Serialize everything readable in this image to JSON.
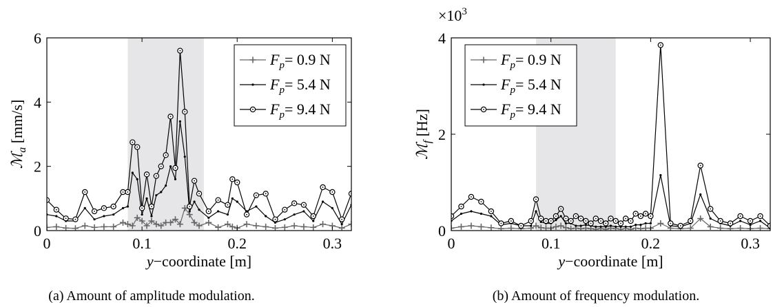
{
  "chart_data": [
    {
      "type": "line",
      "caption": "(a) Amount of amplitude modulation.",
      "xlabel": {
        "var": "y",
        "rest": "−coordinate [m]"
      },
      "ylabel": {
        "sym": "ℳ",
        "sub": "a",
        "unit": "[mm/s]"
      },
      "xlim": [
        0,
        0.32
      ],
      "ylim": [
        0,
        6
      ],
      "xticks": [
        "0",
        "0.1",
        "0.2",
        "0.3"
      ],
      "xtick_values": [
        0,
        0.1,
        0.2,
        0.3
      ],
      "yticks": [
        "0",
        "2",
        "4",
        "6"
      ],
      "ytick_values": [
        0,
        2,
        4,
        6
      ],
      "shaded_region": [
        0.085,
        0.165
      ],
      "legend_position": "top-right",
      "series": [
        {
          "name": "F_p= 0.9 N",
          "legend": {
            "var": "F",
            "sub": "p",
            "rest": "= 0.9 N"
          },
          "marker": "plus",
          "color": "#666666",
          "x": [
            0,
            0.01,
            0.02,
            0.03,
            0.04,
            0.05,
            0.06,
            0.07,
            0.08,
            0.085,
            0.09,
            0.095,
            0.1,
            0.105,
            0.11,
            0.115,
            0.12,
            0.125,
            0.13,
            0.135,
            0.14,
            0.145,
            0.15,
            0.155,
            0.16,
            0.17,
            0.18,
            0.19,
            0.195,
            0.2,
            0.21,
            0.22,
            0.23,
            0.24,
            0.25,
            0.26,
            0.27,
            0.28,
            0.29,
            0.3,
            0.31,
            0.32
          ],
          "y": [
            0.1,
            0.12,
            0.08,
            0.07,
            0.15,
            0.1,
            0.12,
            0.12,
            0.25,
            0.2,
            0.15,
            0.4,
            0.3,
            0.15,
            0.3,
            0.2,
            0.15,
            0.25,
            0.25,
            0.35,
            0.2,
            0.7,
            0.5,
            0.25,
            0.15,
            0.25,
            0.1,
            0.2,
            0.12,
            0.08,
            0.2,
            0.15,
            0.12,
            0.08,
            0.1,
            0.15,
            0.12,
            0.1,
            0.2,
            0.15,
            0.08,
            0.2
          ]
        },
        {
          "name": "F_p= 5.4 N",
          "legend": {
            "var": "F",
            "sub": "p",
            "rest": "= 5.4 N"
          },
          "marker": "dot",
          "color": "#000000",
          "x": [
            0,
            0.01,
            0.02,
            0.03,
            0.04,
            0.05,
            0.06,
            0.07,
            0.08,
            0.085,
            0.09,
            0.095,
            0.1,
            0.105,
            0.11,
            0.115,
            0.12,
            0.125,
            0.13,
            0.135,
            0.14,
            0.145,
            0.15,
            0.155,
            0.16,
            0.17,
            0.18,
            0.19,
            0.195,
            0.2,
            0.21,
            0.22,
            0.23,
            0.24,
            0.25,
            0.26,
            0.27,
            0.28,
            0.29,
            0.3,
            0.31,
            0.32
          ],
          "y": [
            0.5,
            0.45,
            0.3,
            0.3,
            0.7,
            0.35,
            0.45,
            0.5,
            0.7,
            0.75,
            1.8,
            1.6,
            0.5,
            1.0,
            0.45,
            1.1,
            1.2,
            1.4,
            2.0,
            1.6,
            3.4,
            2.3,
            0.6,
            0.9,
            0.65,
            0.4,
            0.6,
            0.5,
            1.0,
            0.9,
            0.6,
            0.75,
            0.45,
            0.25,
            0.35,
            0.5,
            0.6,
            0.3,
            0.9,
            0.7,
            0.2,
            0.8
          ]
        },
        {
          "name": "F_p= 9.4 N",
          "legend": {
            "var": "F",
            "sub": "p",
            "rest": "= 9.4 N"
          },
          "marker": "circle",
          "color": "#000000",
          "x": [
            0,
            0.01,
            0.02,
            0.03,
            0.04,
            0.05,
            0.06,
            0.07,
            0.08,
            0.085,
            0.09,
            0.095,
            0.1,
            0.105,
            0.11,
            0.115,
            0.12,
            0.125,
            0.13,
            0.135,
            0.14,
            0.145,
            0.15,
            0.155,
            0.16,
            0.17,
            0.18,
            0.19,
            0.195,
            0.2,
            0.21,
            0.22,
            0.23,
            0.24,
            0.25,
            0.26,
            0.27,
            0.28,
            0.29,
            0.3,
            0.31,
            0.32
          ],
          "y": [
            0.95,
            0.65,
            0.38,
            0.35,
            1.2,
            0.6,
            0.7,
            0.75,
            1.2,
            1.2,
            2.75,
            2.6,
            0.7,
            1.75,
            0.75,
            1.7,
            2.0,
            2.35,
            3.55,
            1.95,
            5.6,
            3.7,
            0.75,
            1.55,
            1.15,
            0.6,
            0.95,
            0.8,
            1.6,
            1.5,
            0.5,
            1.1,
            1.15,
            0.35,
            0.65,
            0.85,
            0.8,
            0.45,
            1.35,
            1.2,
            0.35,
            1.15
          ]
        }
      ]
    },
    {
      "type": "line",
      "caption": "(b) Amount of frequency modulation.",
      "xlabel": {
        "var": "y",
        "rest": "−coordinate [m]"
      },
      "ylabel": {
        "sym": "ℳ",
        "sub": "f",
        "unit": "[Hz]"
      },
      "multiplier": {
        "base": "×10",
        "exp": "3"
      },
      "xlim": [
        0,
        0.32
      ],
      "ylim": [
        0,
        4
      ],
      "xticks": [
        "0",
        "0.1",
        "0.2",
        "0.3"
      ],
      "xtick_values": [
        0,
        0.1,
        0.2,
        0.3
      ],
      "yticks": [
        "0",
        "2",
        "4"
      ],
      "ytick_values": [
        0,
        2,
        4
      ],
      "shaded_region": [
        0.085,
        0.165
      ],
      "legend_position": "top-left",
      "series": [
        {
          "name": "F_p= 0.9 N",
          "legend": {
            "var": "F",
            "sub": "p",
            "rest": "= 0.9 N"
          },
          "marker": "plus",
          "color": "#666666",
          "x": [
            0,
            0.01,
            0.02,
            0.03,
            0.04,
            0.05,
            0.06,
            0.07,
            0.08,
            0.085,
            0.09,
            0.095,
            0.1,
            0.105,
            0.11,
            0.115,
            0.12,
            0.125,
            0.13,
            0.135,
            0.14,
            0.145,
            0.15,
            0.155,
            0.16,
            0.165,
            0.17,
            0.175,
            0.18,
            0.185,
            0.19,
            0.195,
            0.2,
            0.21,
            0.22,
            0.23,
            0.24,
            0.25,
            0.26,
            0.27,
            0.28,
            0.29,
            0.3,
            0.31,
            0.32
          ],
          "y": [
            0.05,
            0.08,
            0.1,
            0.08,
            0.06,
            0.04,
            0.05,
            0.04,
            0.05,
            0.1,
            0.06,
            0.05,
            0.05,
            0.08,
            0.1,
            0.06,
            0.04,
            0.05,
            0.04,
            0.05,
            0.04,
            0.03,
            0.04,
            0.03,
            0.05,
            0.04,
            0.03,
            0.04,
            0.03,
            0.05,
            0.04,
            0.05,
            0.05,
            0.15,
            0.05,
            0.04,
            0.05,
            0.25,
            0.08,
            0.05,
            0.04,
            0.05,
            0.04,
            0.05,
            0.04
          ]
        },
        {
          "name": "F_p= 5.4 N",
          "legend": {
            "var": "F",
            "sub": "p",
            "rest": "= 5.4 N"
          },
          "marker": "dot",
          "color": "#000000",
          "x": [
            0,
            0.01,
            0.02,
            0.03,
            0.04,
            0.05,
            0.06,
            0.07,
            0.08,
            0.085,
            0.09,
            0.095,
            0.1,
            0.105,
            0.11,
            0.115,
            0.12,
            0.125,
            0.13,
            0.135,
            0.14,
            0.145,
            0.15,
            0.155,
            0.16,
            0.165,
            0.17,
            0.175,
            0.18,
            0.185,
            0.19,
            0.195,
            0.2,
            0.21,
            0.22,
            0.23,
            0.24,
            0.25,
            0.26,
            0.27,
            0.28,
            0.29,
            0.3,
            0.31,
            0.32
          ],
          "y": [
            0.2,
            0.35,
            0.4,
            0.35,
            0.3,
            0.12,
            0.15,
            0.1,
            0.1,
            0.4,
            0.18,
            0.15,
            0.15,
            0.22,
            0.3,
            0.15,
            0.15,
            0.1,
            0.1,
            0.12,
            0.1,
            0.08,
            0.08,
            0.08,
            0.1,
            0.08,
            0.08,
            0.08,
            0.08,
            0.12,
            0.12,
            0.15,
            0.15,
            1.15,
            0.1,
            0.08,
            0.15,
            0.75,
            0.25,
            0.15,
            0.1,
            0.2,
            0.12,
            0.2,
            0.05
          ]
        },
        {
          "name": "F_p= 9.4 N",
          "legend": {
            "var": "F",
            "sub": "p",
            "rest": "= 9.4 N"
          },
          "marker": "circle",
          "color": "#000000",
          "x": [
            0,
            0.01,
            0.02,
            0.03,
            0.04,
            0.05,
            0.06,
            0.07,
            0.08,
            0.085,
            0.09,
            0.095,
            0.1,
            0.105,
            0.11,
            0.115,
            0.12,
            0.125,
            0.13,
            0.135,
            0.14,
            0.145,
            0.15,
            0.155,
            0.16,
            0.165,
            0.17,
            0.175,
            0.18,
            0.185,
            0.19,
            0.195,
            0.2,
            0.21,
            0.22,
            0.23,
            0.24,
            0.25,
            0.26,
            0.27,
            0.28,
            0.29,
            0.3,
            0.31,
            0.32
          ],
          "y": [
            0.3,
            0.5,
            0.7,
            0.6,
            0.4,
            0.15,
            0.2,
            0.1,
            0.2,
            0.65,
            0.25,
            0.2,
            0.2,
            0.3,
            0.45,
            0.25,
            0.2,
            0.3,
            0.25,
            0.2,
            0.15,
            0.25,
            0.2,
            0.15,
            0.25,
            0.2,
            0.15,
            0.25,
            0.2,
            0.35,
            0.3,
            0.35,
            0.3,
            3.85,
            0.15,
            0.1,
            0.2,
            1.35,
            0.45,
            0.2,
            0.15,
            0.3,
            0.2,
            0.3,
            0.1
          ]
        }
      ]
    }
  ]
}
